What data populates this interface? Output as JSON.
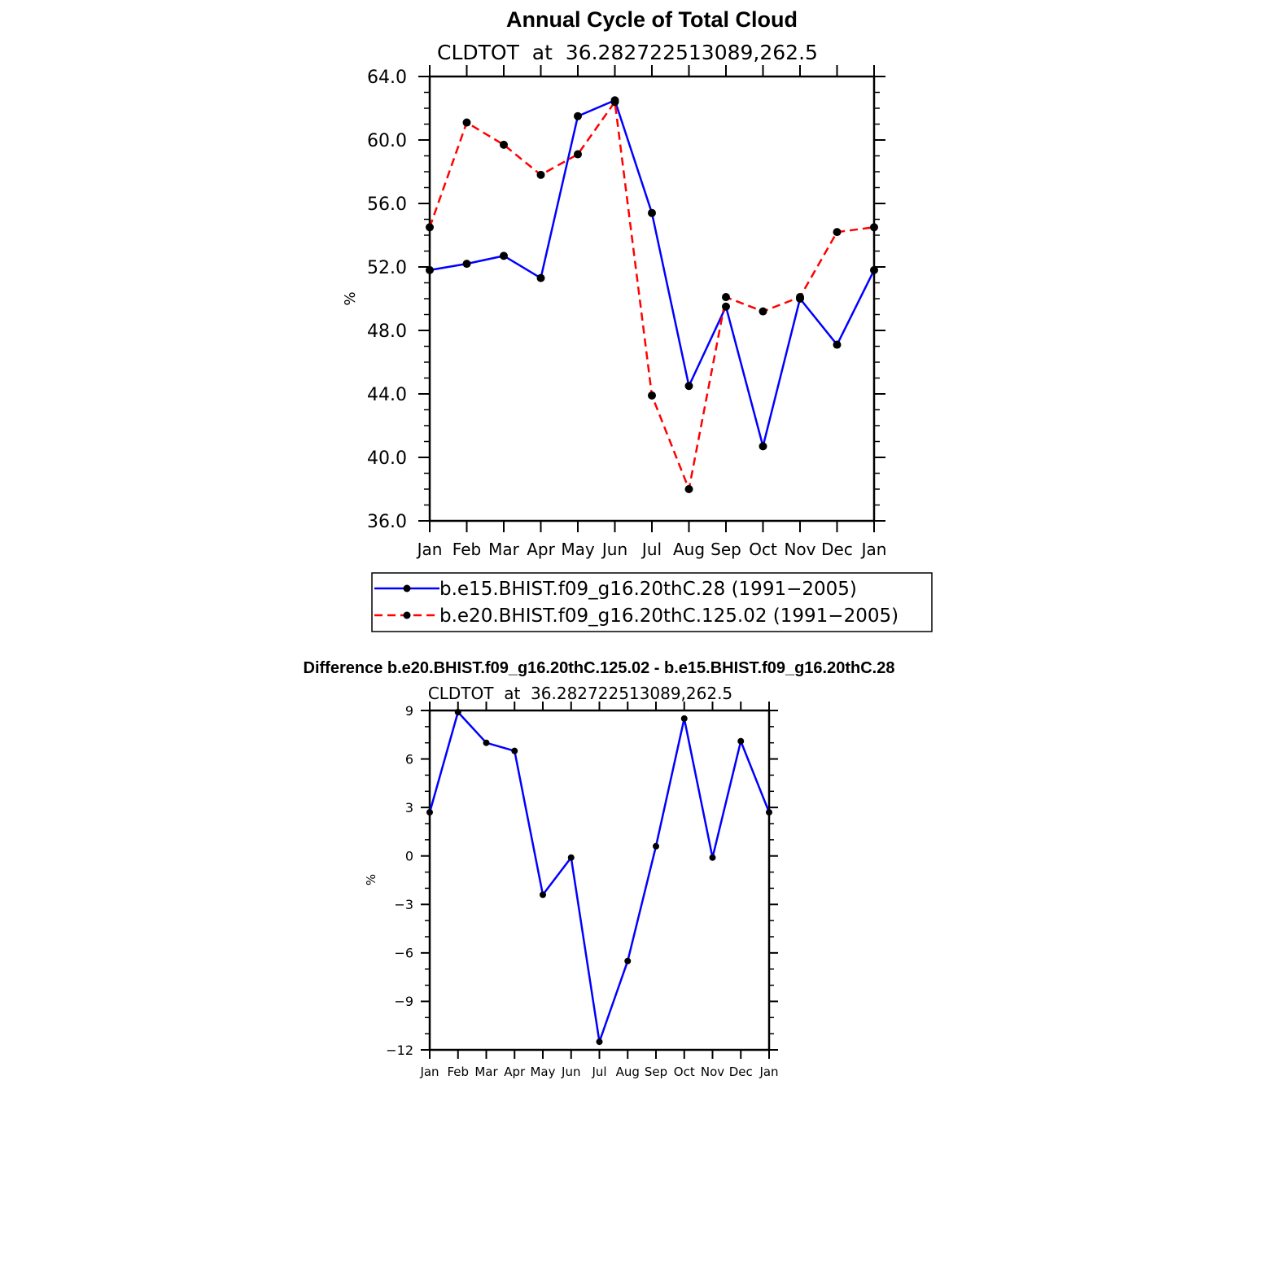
{
  "chart_data": [
    {
      "type": "line",
      "title": "Annual Cycle of Total Cloud",
      "subtitle": "CLDTOT  at  36.282722513089,262.5",
      "ylabel": "%",
      "xlabel": "",
      "categories": [
        "Jan",
        "Feb",
        "Mar",
        "Apr",
        "May",
        "Jun",
        "Jul",
        "Aug",
        "Sep",
        "Oct",
        "Nov",
        "Dec",
        "Jan"
      ],
      "ylim": [
        36,
        64
      ],
      "yticks": [
        "36.0",
        "40.0",
        "44.0",
        "48.0",
        "52.0",
        "56.0",
        "60.0",
        "64.0"
      ],
      "series": [
        {
          "name": "b.e15.BHIST.f09_g16.20thC.28 (1991−2005)",
          "color": "#0000ff",
          "dash": "solid",
          "values": [
            51.8,
            52.2,
            52.7,
            51.3,
            61.5,
            62.5,
            55.4,
            44.5,
            49.5,
            40.7,
            50.0,
            47.1,
            51.8
          ]
        },
        {
          "name": "b.e20.BHIST.f09_g16.20thC.125.02 (1991−2005)",
          "color": "#ff0000",
          "dash": "dashed",
          "values": [
            54.5,
            61.1,
            59.7,
            57.8,
            59.1,
            62.4,
            43.9,
            38.0,
            50.1,
            49.2,
            50.1,
            54.2,
            54.5
          ]
        }
      ],
      "legend": "below",
      "grid": false
    },
    {
      "type": "line",
      "title": "Difference b.e20.BHIST.f09_g16.20thC.125.02 - b.e15.BHIST.f09_g16.20thC.28",
      "subtitle": "CLDTOT  at  36.282722513089,262.5",
      "ylabel": "%",
      "xlabel": "",
      "categories": [
        "Jan",
        "Feb",
        "Mar",
        "Apr",
        "May",
        "Jun",
        "Jul",
        "Aug",
        "Sep",
        "Oct",
        "Nov",
        "Dec",
        "Jan"
      ],
      "ylim": [
        -12,
        9
      ],
      "yticks": [
        "−12",
        "−9",
        "−6",
        "−3",
        "0",
        "3",
        "6",
        "9"
      ],
      "series": [
        {
          "color": "#0000ff",
          "dash": "solid",
          "values": [
            2.7,
            8.9,
            7.0,
            6.5,
            -2.4,
            -0.1,
            -11.5,
            -6.5,
            0.6,
            8.5,
            -0.1,
            7.1,
            2.7
          ]
        }
      ],
      "grid": false
    }
  ]
}
